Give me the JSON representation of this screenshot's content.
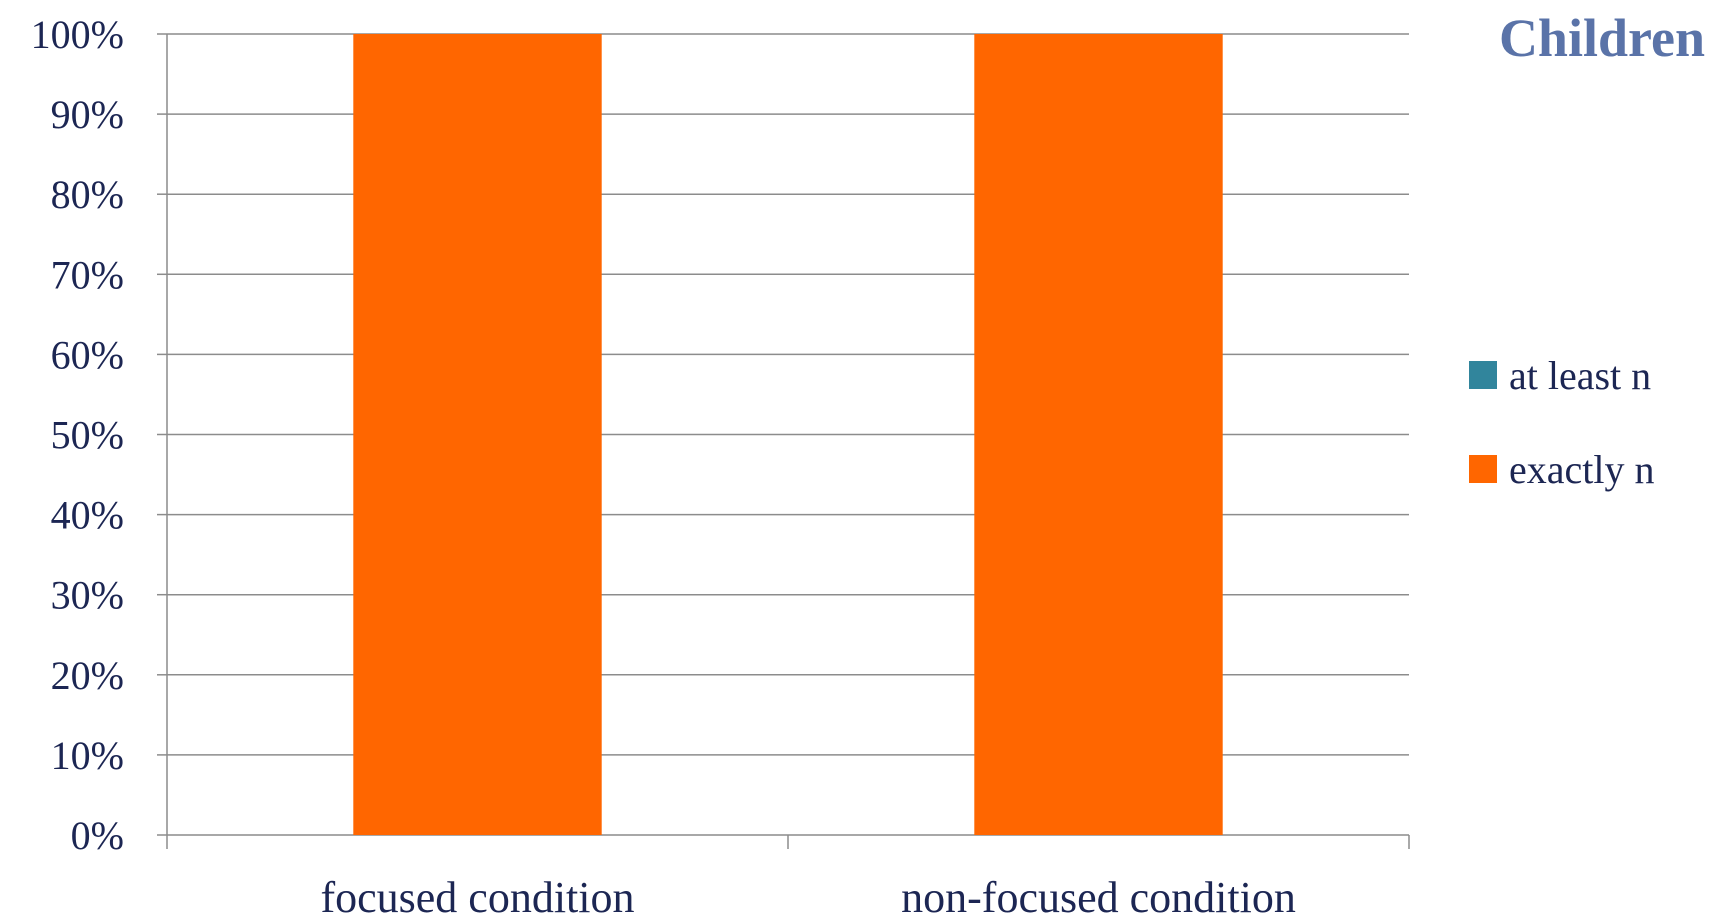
{
  "chart_data": {
    "type": "bar",
    "stacked": true,
    "title": "Children",
    "categories": [
      "focused condition",
      "non-focused condition"
    ],
    "series": [
      {
        "name": "at least n",
        "values": [
          0,
          0
        ],
        "color": "#31859c"
      },
      {
        "name": "exactly n",
        "values": [
          100,
          100
        ],
        "color": "#ff6600"
      }
    ],
    "yticks": [
      "0%",
      "10%",
      "20%",
      "30%",
      "40%",
      "50%",
      "60%",
      "70%",
      "80%",
      "90%",
      "100%"
    ],
    "ylim": [
      0,
      100
    ],
    "grid": true,
    "legend": "right",
    "xlabel": "",
    "ylabel": ""
  }
}
